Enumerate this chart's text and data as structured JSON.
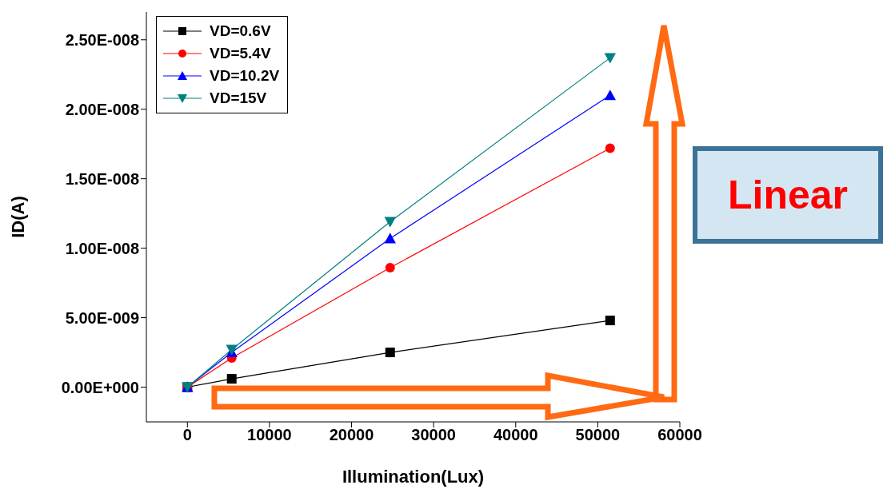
{
  "chart_data": {
    "type": "line",
    "xlabel": "Illumination(Lux)",
    "ylabel": "ID(A)",
    "x": [
      0,
      5400,
      24700,
      51500
    ],
    "series": [
      {
        "name": "VD=0.6V",
        "color": "#000000",
        "marker": "square",
        "values": [
          0,
          6e-10,
          2.5e-09,
          4.8e-09
        ]
      },
      {
        "name": "VD=5.4V",
        "color": "#ff0000",
        "marker": "circle",
        "values": [
          0,
          2.1e-09,
          8.6e-09,
          1.72e-08
        ]
      },
      {
        "name": "VD=10.2V",
        "color": "#0000ff",
        "marker": "triangle",
        "values": [
          0,
          2.5e-09,
          1.07e-08,
          2.1e-08
        ]
      },
      {
        "name": "VD=15V",
        "color": "#008080",
        "marker": "triangle-down",
        "values": [
          0,
          2.7e-09,
          1.19e-08,
          2.37e-08
        ]
      }
    ],
    "xlim": [
      -5000,
      60000
    ],
    "xticks": [
      0,
      10000,
      20000,
      30000,
      40000,
      50000,
      60000
    ],
    "ylim": [
      -2.5e-09,
      2.7e-08
    ],
    "yticks": [
      {
        "value": 0,
        "label": "0.00E+000"
      },
      {
        "value": 5e-09,
        "label": "5.00E-009"
      },
      {
        "value": 1e-08,
        "label": "1.00E-008"
      },
      {
        "value": 1.5e-08,
        "label": "1.50E-008"
      },
      {
        "value": 2e-08,
        "label": "2.00E-008"
      },
      {
        "value": 2.5e-08,
        "label": "2.50E-008"
      }
    ],
    "grid": false,
    "legend": "top left",
    "line_style": "solid",
    "annotations": [
      "Linear"
    ]
  }
}
